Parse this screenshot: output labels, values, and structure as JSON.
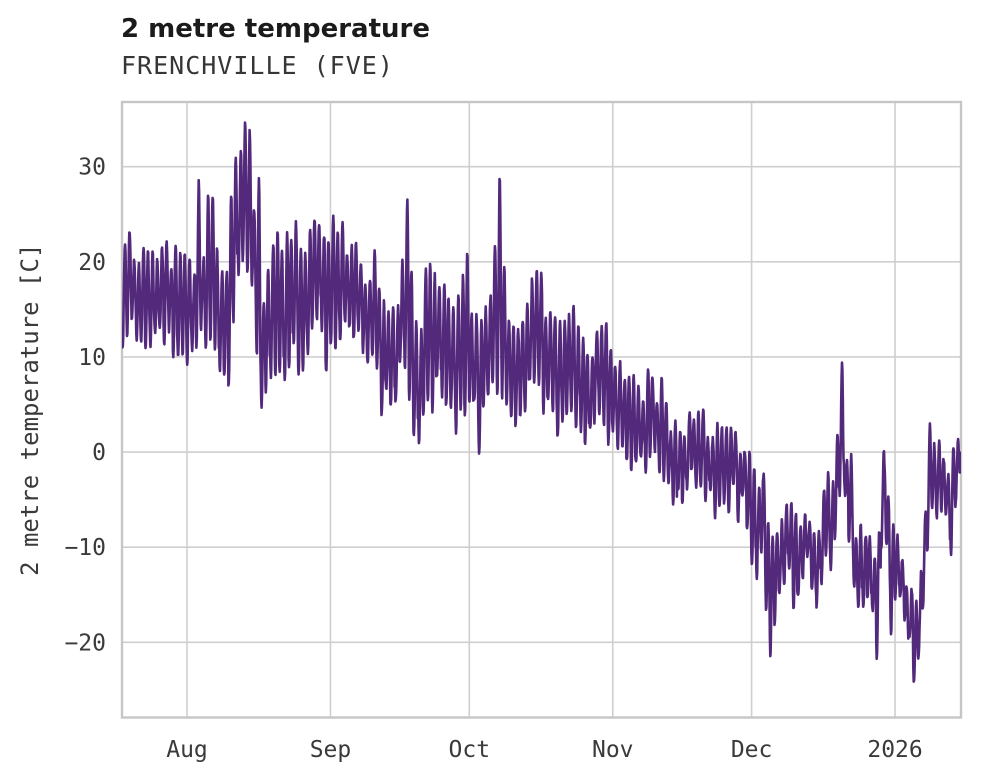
{
  "header": {
    "title": "2 metre temperature",
    "subtitle": "FRENCHVILLE (FVE)"
  },
  "chart_data": {
    "type": "line",
    "title": "2 metre temperature",
    "subtitle": "FRENCHVILLE (FVE)",
    "ylabel": "2 metre temperature [C]",
    "units": "C",
    "grid": true,
    "legend": "none",
    "xlim_days": [
      0,
      181.3
    ],
    "ylim": [
      -27.9,
      36.8
    ],
    "x_ticks": [
      {
        "label": "Aug",
        "day": 14.05
      },
      {
        "label": "Sep",
        "day": 45.05
      },
      {
        "label": "Oct",
        "day": 75.05
      },
      {
        "label": "Nov",
        "day": 106.05
      },
      {
        "label": "Dec",
        "day": 136.05
      },
      {
        "label": "2026",
        "day": 167.05
      }
    ],
    "y_ticks": [
      {
        "label": "30",
        "value": 30
      },
      {
        "label": "20",
        "value": 20
      },
      {
        "label": "10",
        "value": 10
      },
      {
        "label": "0",
        "value": 0
      },
      {
        "label": "−10",
        "value": -10
      },
      {
        "label": "−20",
        "value": -20
      }
    ],
    "series": [
      {
        "name": "2 metre temperature",
        "color": "#53297b",
        "points_day_min_max": [
          [
            0,
            10,
            21.5
          ],
          [
            2,
            13,
            23.3
          ],
          [
            4,
            11,
            20
          ],
          [
            6,
            10.5,
            23.4
          ],
          [
            8,
            12,
            20.5
          ],
          [
            10,
            13,
            22
          ],
          [
            12,
            10,
            21
          ],
          [
            14,
            9,
            19.5
          ],
          [
            15.5,
            11,
            20
          ],
          [
            16.62,
            12,
            28.3
          ],
          [
            17.5,
            11.5,
            19
          ],
          [
            18.62,
            12,
            28.3
          ],
          [
            20,
            12,
            25.3
          ],
          [
            21.5,
            8,
            18
          ],
          [
            22.62,
            6.8,
            20
          ],
          [
            24,
            14,
            29.5
          ],
          [
            25.6,
            19,
            32
          ],
          [
            26.62,
            21,
            33.8
          ],
          [
            27.6,
            18,
            32.5
          ],
          [
            28.6,
            13,
            25
          ],
          [
            29.62,
            10,
            28.4
          ],
          [
            30.12,
            3.4,
            16
          ],
          [
            31.5,
            7,
            19
          ],
          [
            33,
            9,
            22
          ],
          [
            35,
            8,
            21
          ],
          [
            37,
            11,
            23
          ],
          [
            39.5,
            10,
            21
          ],
          [
            42,
            12,
            25.2
          ],
          [
            44,
            10.5,
            23.5
          ],
          [
            45.5,
            12,
            23.5
          ],
          [
            47.5,
            12.5,
            25.3
          ],
          [
            49.5,
            13,
            21
          ],
          [
            51.5,
            11,
            19
          ],
          [
            53,
            9,
            18
          ],
          [
            54.62,
            9,
            22
          ],
          [
            56,
            5.5,
            15
          ],
          [
            58,
            4.4,
            14
          ],
          [
            60,
            7,
            17.5
          ],
          [
            61.62,
            9,
            25.8
          ],
          [
            63,
            3,
            16
          ],
          [
            64.12,
            1.5,
            12
          ],
          [
            66,
            5,
            19.7
          ],
          [
            68,
            6,
            18
          ],
          [
            70,
            4.7,
            16
          ],
          [
            72,
            3,
            14
          ],
          [
            74.62,
            4,
            20.5
          ],
          [
            76,
            3,
            15.5
          ],
          [
            77.12,
            0.2,
            13
          ],
          [
            79.5,
            5,
            18
          ],
          [
            81.62,
            8,
            27.3
          ],
          [
            83,
            6,
            15.5
          ],
          [
            85,
            4,
            13
          ],
          [
            87,
            6,
            15.5
          ],
          [
            90,
            7,
            18.3
          ],
          [
            92,
            5,
            15
          ],
          [
            94,
            2.5,
            12
          ],
          [
            97,
            4.5,
            15.2
          ],
          [
            100,
            2,
            11
          ],
          [
            103,
            3.5,
            13.8
          ],
          [
            106,
            1,
            10
          ],
          [
            109,
            -0.5,
            8.5
          ],
          [
            112,
            -2,
            6.5
          ],
          [
            115,
            0,
            8.8
          ],
          [
            118,
            -3,
            4.5
          ],
          [
            121.12,
            -6.6,
            2
          ],
          [
            123.5,
            -2.5,
            5.8
          ],
          [
            126,
            -5,
            2.5
          ],
          [
            129,
            -6,
            2
          ],
          [
            132,
            -5,
            2.8
          ],
          [
            134.5,
            -6.5,
            0.5
          ],
          [
            137.12,
            -13.7,
            -3
          ],
          [
            138.5,
            -9.5,
            -0.5
          ],
          [
            140.12,
            -21.5,
            -9
          ],
          [
            142,
            -15,
            -6
          ],
          [
            144,
            -12,
            -5
          ],
          [
            146.12,
            -16.3,
            -7.5
          ],
          [
            148,
            -13,
            -6
          ],
          [
            150.12,
            -16.5,
            -8.5
          ],
          [
            152,
            -12,
            -4
          ],
          [
            154,
            -10,
            -2
          ],
          [
            155.62,
            -4,
            9.5
          ],
          [
            156.62,
            -10,
            -1
          ],
          [
            157.62,
            -8,
            0.9
          ],
          [
            158.5,
            -16.5,
            -7
          ],
          [
            160.12,
            -17.5,
            -9.5
          ],
          [
            161.5,
            -14,
            -8
          ],
          [
            163.12,
            -21,
            -12
          ],
          [
            164.62,
            -6,
            -0.8
          ],
          [
            165.5,
            -11,
            -3
          ],
          [
            166.12,
            -19.3,
            -6
          ],
          [
            167.5,
            -16.5,
            -10
          ],
          [
            169,
            -16.4,
            -11.5
          ],
          [
            171.12,
            -24.8,
            -16
          ],
          [
            172.5,
            -21,
            -14
          ],
          [
            173.5,
            -13,
            -6
          ],
          [
            174.62,
            -4,
            3.2
          ],
          [
            176.12,
            -6.8,
            -0.5
          ],
          [
            177.5,
            -4,
            -0.3
          ],
          [
            179.12,
            -10.4,
            -1
          ],
          [
            180.3,
            -5,
            0.5
          ],
          [
            181.3,
            0.5,
            2.1
          ]
        ]
      }
    ]
  },
  "styles": {
    "background": "#ffffff",
    "line_color": "#53297b",
    "grid_color": "#cfcfcf",
    "spine_color": "#c6c6c6",
    "tick_text_color": "#3a3a3a",
    "title_color": "#1b1b1b",
    "subtitle_color": "#363636"
  }
}
